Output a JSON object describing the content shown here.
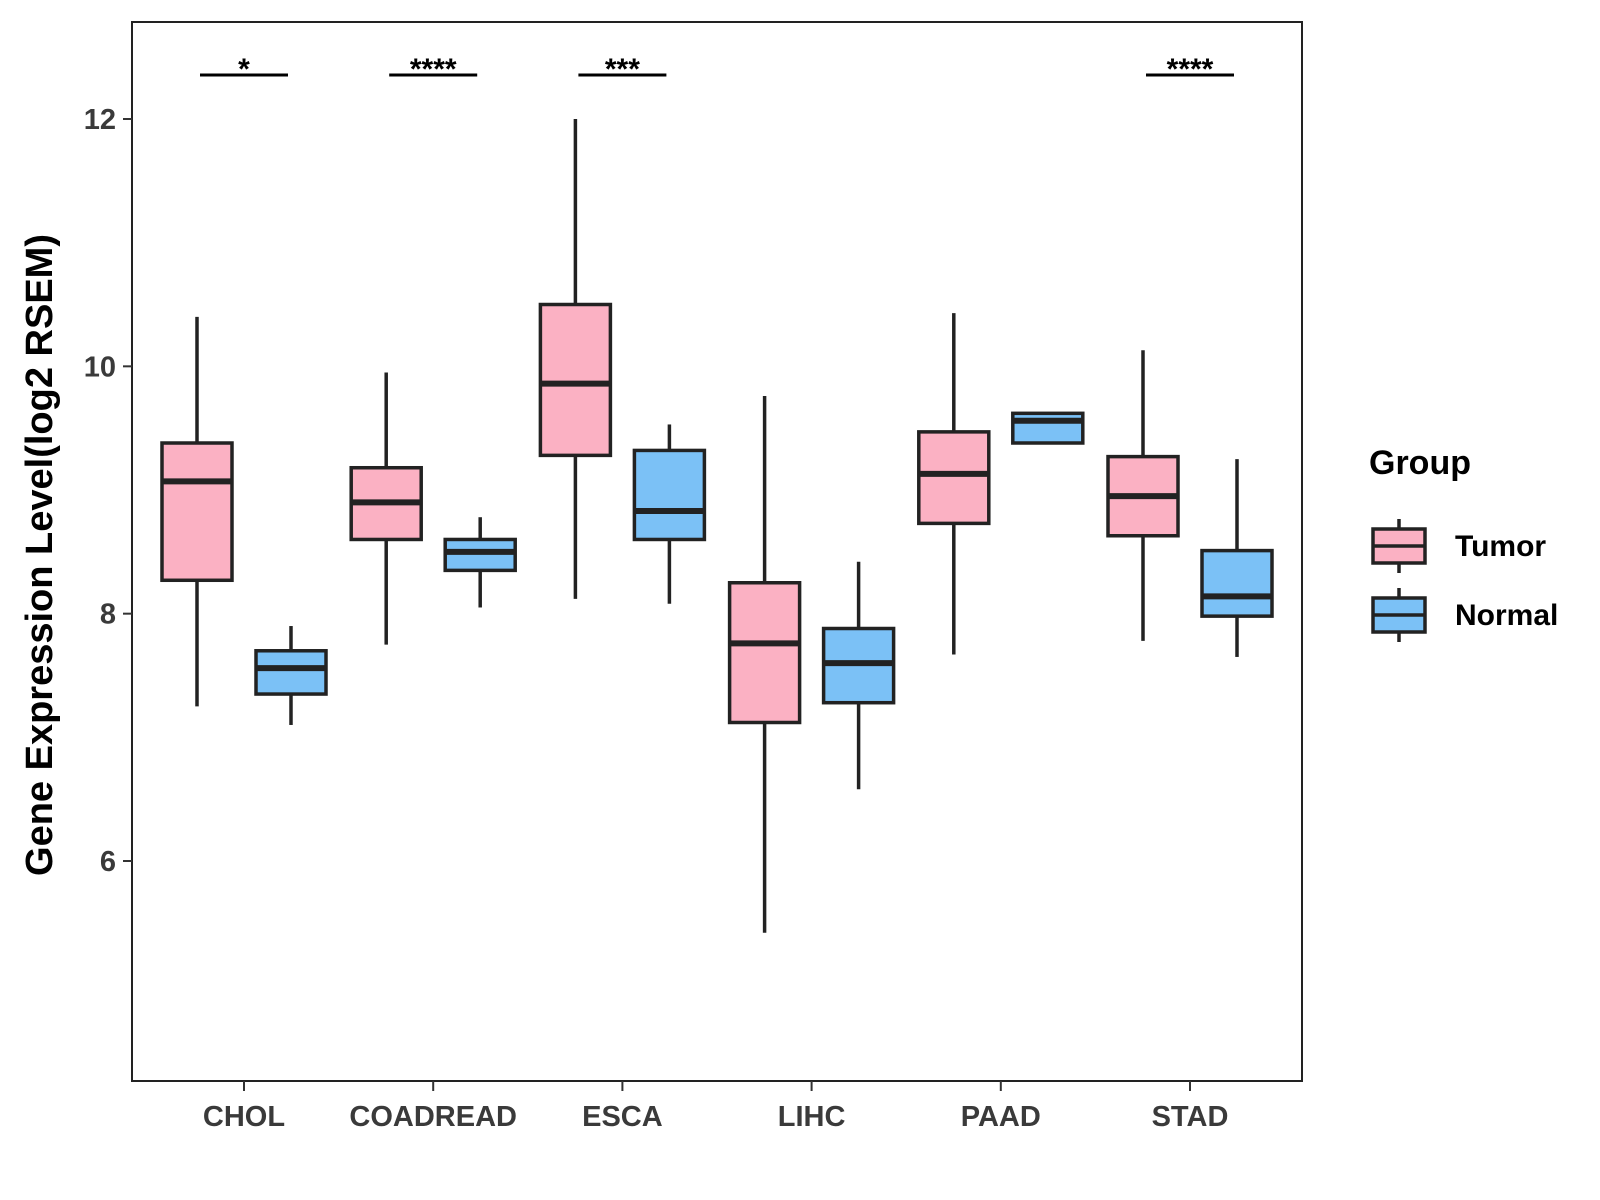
{
  "chart_data": {
    "type": "boxplot",
    "ylabel": "Gene Expression Level(log2 RSEM)",
    "xlabel": "",
    "ylim": [
      4.2,
      12.8
    ],
    "yticks": [
      6,
      8,
      10,
      12
    ],
    "categories": [
      "CHOL",
      "COADREAD",
      "ESCA",
      "LIHC",
      "PAAD",
      "STAD"
    ],
    "legend": {
      "title": "Group",
      "position": "right",
      "entries": [
        {
          "name": "Tumor",
          "color": "#FBB1C3"
        },
        {
          "name": "Normal",
          "color": "#7BC1F6"
        }
      ]
    },
    "series": [
      {
        "name": "Tumor",
        "color": "#FBB1C3",
        "boxes": [
          {
            "min": 7.25,
            "q1": 8.27,
            "median": 9.07,
            "q3": 9.38,
            "max": 10.4
          },
          {
            "min": 7.75,
            "q1": 8.6,
            "median": 8.9,
            "q3": 9.18,
            "max": 9.95
          },
          {
            "min": 8.12,
            "q1": 9.28,
            "median": 9.86,
            "q3": 10.5,
            "max": 12.0
          },
          {
            "min": 5.42,
            "q1": 7.12,
            "median": 7.76,
            "q3": 8.25,
            "max": 9.76
          },
          {
            "min": 7.67,
            "q1": 8.73,
            "median": 9.13,
            "q3": 9.47,
            "max": 10.43
          },
          {
            "min": 7.78,
            "q1": 8.63,
            "median": 8.95,
            "q3": 9.27,
            "max": 10.13
          }
        ]
      },
      {
        "name": "Normal",
        "color": "#7BC1F6",
        "boxes": [
          {
            "min": 7.1,
            "q1": 7.35,
            "median": 7.56,
            "q3": 7.7,
            "max": 7.9
          },
          {
            "min": 8.05,
            "q1": 8.35,
            "median": 8.5,
            "q3": 8.6,
            "max": 8.78
          },
          {
            "min": 8.08,
            "q1": 8.6,
            "median": 8.83,
            "q3": 9.32,
            "max": 9.53
          },
          {
            "min": 6.58,
            "q1": 7.28,
            "median": 7.6,
            "q3": 7.88,
            "max": 8.42
          },
          {
            "min": 9.38,
            "q1": 9.38,
            "median": 9.56,
            "q3": 9.62,
            "max": 9.62
          },
          {
            "min": 7.65,
            "q1": 7.98,
            "median": 8.14,
            "q3": 8.51,
            "max": 9.25
          }
        ]
      }
    ],
    "significance": [
      {
        "category": "CHOL",
        "label": "*"
      },
      {
        "category": "COADREAD",
        "label": "****"
      },
      {
        "category": "ESCA",
        "label": "***"
      },
      {
        "category": "STAD",
        "label": "****"
      }
    ]
  }
}
